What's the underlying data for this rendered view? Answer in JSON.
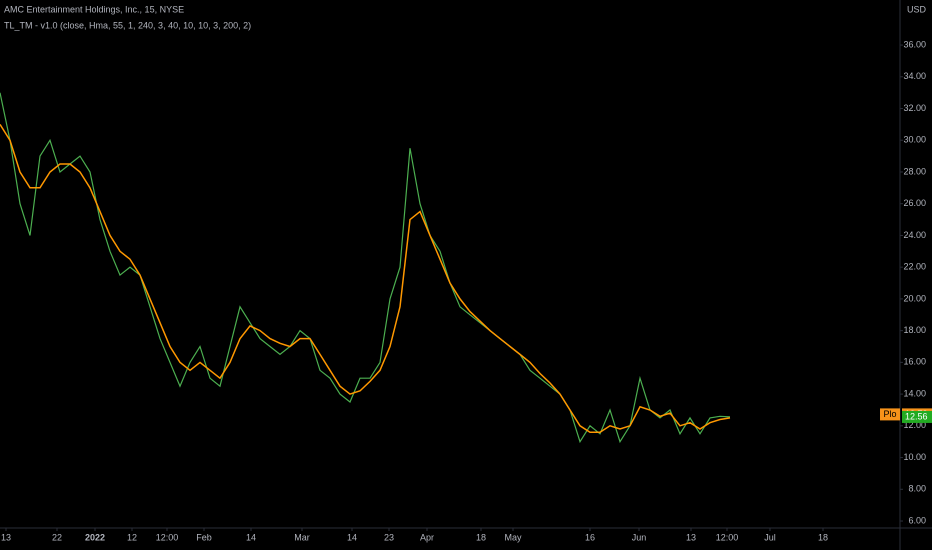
{
  "chart_data": {
    "type": "line",
    "title": "AMC Entertainment Holdings, Inc., 15, NYSE",
    "subtitle": "TL_TM - v1.0 (close, Hma, 55, 1, 240, 3, 40, 10, 10, 3, 200, 2)",
    "currency": "USD",
    "grid": false,
    "x": [
      0,
      1,
      2,
      3,
      4,
      5,
      6,
      7,
      8,
      9,
      10,
      11,
      12,
      13,
      14,
      15,
      16,
      17,
      18,
      19,
      20,
      21,
      22,
      23,
      24,
      25,
      26,
      27,
      28,
      29,
      30,
      31,
      32,
      33,
      34,
      35,
      36,
      37,
      38,
      39,
      40,
      41,
      42,
      43,
      44,
      45,
      46,
      47,
      48,
      49,
      50,
      51,
      52,
      53,
      54,
      55,
      56,
      57,
      58,
      59,
      60,
      61,
      62,
      63,
      64,
      65,
      66,
      67,
      68,
      69,
      70,
      71,
      72,
      73
    ],
    "xlim": [
      0,
      90
    ],
    "xticks": [
      {
        "value": 0.6,
        "label": "13"
      },
      {
        "value": 5.7,
        "label": "22"
      },
      {
        "value": 9.5,
        "label": "2022"
      },
      {
        "value": 13.2,
        "label": "12"
      },
      {
        "value": 16.7,
        "label": "12:00"
      },
      {
        "value": 20.4,
        "label": "Feb"
      },
      {
        "value": 25.1,
        "label": "14"
      },
      {
        "value": 30.2,
        "label": "Mar"
      },
      {
        "value": 35.2,
        "label": "14"
      },
      {
        "value": 38.9,
        "label": "23"
      },
      {
        "value": 42.7,
        "label": "Apr"
      },
      {
        "value": 48.1,
        "label": "18"
      },
      {
        "value": 51.3,
        "label": "May"
      },
      {
        "value": 59,
        "label": "16"
      },
      {
        "value": 63.9,
        "label": "Jun"
      },
      {
        "value": 69.1,
        "label": "13"
      },
      {
        "value": 72.7,
        "label": "12:00"
      },
      {
        "value": 77,
        "label": "Jul"
      },
      {
        "value": 82.3,
        "label": "18"
      }
    ],
    "ylim": [
      5.56,
      38.84
    ],
    "yticks": [
      {
        "value": 6,
        "label": "6.00"
      },
      {
        "value": 8,
        "label": "8.00"
      },
      {
        "value": 10,
        "label": "10.00"
      },
      {
        "value": 12,
        "label": "12.00"
      },
      {
        "value": 14,
        "label": "14.00"
      },
      {
        "value": 16,
        "label": "16.00"
      },
      {
        "value": 18,
        "label": "18.00"
      },
      {
        "value": 20,
        "label": "20.00"
      },
      {
        "value": 22,
        "label": "22.00"
      },
      {
        "value": 24,
        "label": "24.00"
      },
      {
        "value": 26,
        "label": "26.00"
      },
      {
        "value": 28,
        "label": "28.00"
      },
      {
        "value": 30,
        "label": "30.00"
      },
      {
        "value": 32,
        "label": "32.00"
      },
      {
        "value": 34,
        "label": "34.00"
      },
      {
        "value": 36,
        "label": "36.00"
      }
    ],
    "series": [
      {
        "color": "#4caf50",
        "values": [
          33,
          30,
          26,
          24,
          29,
          30,
          28,
          28.5,
          29,
          28,
          25,
          23,
          21.5,
          22,
          21.5,
          19.5,
          17.5,
          16,
          14.5,
          16,
          17,
          15,
          14.5,
          17,
          19.5,
          18.5,
          17.5,
          17,
          16.5,
          17,
          18,
          17.5,
          15.5,
          15,
          14,
          13.5,
          15,
          15,
          16,
          20,
          22,
          29.5,
          26,
          24,
          23,
          21,
          19.5,
          19,
          18.5,
          18,
          17.5,
          17,
          16.5,
          15.5,
          15,
          14.5,
          14,
          13,
          11,
          12,
          11.5,
          13,
          11,
          12,
          15,
          13,
          12.5,
          13,
          11.5,
          12.5,
          11.5,
          12.5,
          12.6,
          12.56
        ]
      },
      {
        "color": "#ff9800",
        "values": [
          31,
          30,
          28,
          27,
          27,
          28,
          28.5,
          28.5,
          28,
          27,
          25.5,
          24,
          23,
          22.5,
          21.5,
          20,
          18.5,
          17,
          16,
          15.5,
          16,
          15.5,
          15,
          16,
          17.5,
          18.3,
          18,
          17.5,
          17.2,
          17,
          17.5,
          17.5,
          16.5,
          15.5,
          14.5,
          14,
          14.2,
          14.8,
          15.5,
          17,
          19.5,
          25,
          25.5,
          24,
          22.5,
          21,
          20,
          19.2,
          18.6,
          18,
          17.5,
          17,
          16.5,
          16,
          15.3,
          14.7,
          14,
          13,
          12,
          11.6,
          11.6,
          12,
          11.8,
          12,
          13.2,
          13,
          12.6,
          12.8,
          12,
          12.2,
          11.8,
          12.2,
          12.4,
          12.5
        ]
      }
    ],
    "price_tags": [
      {
        "value": 12.72,
        "color": "#f7931a",
        "tag": "Plo"
      },
      {
        "value": 12.56,
        "color": "#22ab22"
      }
    ]
  }
}
